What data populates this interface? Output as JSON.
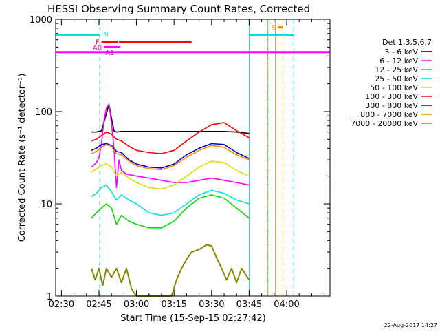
{
  "chart_data": {
    "type": "line",
    "title": "HESSI Observing Summary Count Rates, Corrected",
    "xlabel": "Start Time (15-Sep-15 02:27:42)",
    "ylabel": "Corrected Count Rate (s⁻¹ detector⁻¹)",
    "y_scale": "log",
    "ylim": [
      1,
      1000
    ],
    "xlim_minutes": [
      -2.3,
      107.3
    ],
    "x_ticks": [
      {
        "label": "02:30",
        "minute": 0
      },
      {
        "label": "02:45",
        "minute": 15
      },
      {
        "label": "03:00",
        "minute": 30
      },
      {
        "label": "03:15",
        "minute": 45
      },
      {
        "label": "03:30",
        "minute": 60
      },
      {
        "label": "03:45",
        "minute": 75
      },
      {
        "label": "04:00",
        "minute": 90
      }
    ],
    "y_ticks": [
      {
        "label": "1",
        "value": 1
      },
      {
        "label": "10",
        "value": 10
      },
      {
        "label": "100",
        "value": 100
      },
      {
        "label": "1000",
        "value": 1000
      }
    ],
    "legend_title": "Det 1,3,5,6,7",
    "legend_position": "right",
    "timestamp": "22-Aug-2017 14:27",
    "series": [
      {
        "name": "3 - 6 keV",
        "color": "#000000",
        "x": [
          12,
          14,
          16,
          18,
          19,
          20,
          21,
          22,
          24,
          27,
          30,
          35,
          40,
          45,
          50,
          55,
          60,
          65,
          70,
          75
        ],
        "y": [
          60,
          60,
          62,
          95,
          120,
          85,
          62,
          60,
          61,
          61,
          61,
          61,
          61,
          61,
          61,
          61,
          61,
          61,
          60,
          58
        ]
      },
      {
        "name": "6 - 12 keV",
        "color": "#ff00ff",
        "x": [
          12,
          14,
          15,
          16,
          17,
          18,
          19,
          20,
          21,
          22,
          23,
          24,
          26,
          30,
          35,
          40,
          45,
          50,
          55,
          60,
          65,
          70,
          75
        ],
        "y": [
          25,
          28,
          32,
          45,
          80,
          110,
          120,
          75,
          40,
          15,
          30,
          23,
          21,
          20,
          19,
          18,
          17,
          17,
          18,
          19,
          18,
          17,
          16
        ]
      },
      {
        "name": "12 - 25 keV",
        "color": "#00dd00",
        "x": [
          12,
          14,
          16,
          18,
          20,
          22,
          24,
          27,
          30,
          35,
          40,
          45,
          50,
          55,
          60,
          65,
          70,
          75
        ],
        "y": [
          7,
          8,
          9,
          10,
          9,
          6,
          7.5,
          6.5,
          6,
          5.5,
          5.5,
          6.5,
          9,
          11.5,
          12.5,
          11.5,
          9,
          7
        ]
      },
      {
        "name": "25 - 50 keV",
        "color": "#00e0e0",
        "x": [
          12,
          14,
          16,
          18,
          20,
          22,
          24,
          27,
          30,
          35,
          40,
          45,
          50,
          55,
          60,
          65,
          70,
          75
        ],
        "y": [
          12,
          13,
          15,
          16,
          13.5,
          11,
          12.5,
          11,
          10,
          8,
          7.5,
          8,
          10,
          12.5,
          14,
          13,
          11,
          10
        ]
      },
      {
        "name": "50 - 100 keV",
        "color": "#dddd00",
        "x": [
          12,
          14,
          16,
          18,
          20,
          22,
          24,
          27,
          30,
          35,
          40,
          45,
          50,
          55,
          60,
          65,
          70,
          75
        ],
        "y": [
          22,
          24,
          26,
          27,
          25,
          20,
          22,
          19,
          17,
          15,
          14.5,
          16,
          20,
          25,
          29,
          28,
          23,
          20
        ]
      },
      {
        "name": "100 - 300 keV",
        "color": "#ff0000",
        "x": [
          12,
          14,
          16,
          18,
          20,
          22,
          24,
          27,
          30,
          35,
          40,
          45,
          50,
          55,
          60,
          65,
          70,
          75
        ],
        "y": [
          48,
          50,
          55,
          60,
          57,
          50,
          48,
          42,
          38,
          36,
          35,
          38,
          48,
          60,
          72,
          76,
          62,
          52
        ]
      },
      {
        "name": "300 - 800 keV",
        "color": "#0000cc",
        "x": [
          12,
          14,
          16,
          18,
          20,
          22,
          24,
          27,
          30,
          35,
          40,
          45,
          50,
          55,
          60,
          65,
          70,
          75
        ],
        "y": [
          38,
          40,
          44,
          45,
          43,
          37,
          36,
          30,
          27,
          25,
          24.5,
          27,
          34,
          40,
          45,
          44,
          36,
          31
        ]
      },
      {
        "name": "800 - 7000 keV",
        "color": "#ff8800",
        "x": [
          12,
          14,
          16,
          18,
          20,
          22,
          24,
          27,
          30,
          35,
          40,
          45,
          50,
          55,
          60,
          65,
          70,
          75
        ],
        "y": [
          35,
          37,
          41,
          44,
          42,
          35,
          34,
          29,
          26,
          24,
          23.5,
          26,
          32,
          38,
          43,
          41,
          34,
          30
        ]
      },
      {
        "name": "7000 - 20000 keV",
        "color": "#888800",
        "x": [
          12,
          13.5,
          15,
          16.5,
          18,
          20,
          22,
          24,
          26,
          28,
          30,
          35,
          40,
          44,
          46,
          48,
          50,
          52,
          55,
          58,
          60,
          62,
          64,
          66,
          68,
          70,
          72,
          75
        ],
        "y": [
          2,
          1.5,
          2,
          1.3,
          2,
          1.6,
          2,
          1.4,
          2,
          1.2,
          1,
          1,
          1,
          1,
          1.5,
          2,
          2.5,
          3,
          3.2,
          3.6,
          3.5,
          2.6,
          2,
          1.5,
          2,
          1.4,
          2,
          1.5
        ]
      }
    ],
    "state_bars": [
      {
        "label": "N",
        "color": "#00e0e0",
        "segments": [
          [
            -2.3,
            15.3
          ],
          [
            75,
            92.8
          ]
        ],
        "level_value": 670
      },
      {
        "label": "F",
        "color": "#ff0000",
        "segments": [
          [
            16,
            22.5
          ],
          [
            23,
            52
          ]
        ],
        "level_value": 570
      },
      {
        "label": "A0",
        "color": "#ff00ff",
        "segments": [
          [
            17,
            23.5
          ]
        ],
        "level_value": 500
      },
      {
        "label": "A1",
        "color": "#ff00ff",
        "segments": [
          [
            -2.3,
            107.3
          ]
        ],
        "level_value": 440
      },
      {
        "label": "S",
        "color": "#ff8800",
        "segments": [
          [
            86.5,
            88.5
          ]
        ],
        "level_value": 820
      }
    ],
    "vertical_markers": [
      {
        "minute": 15.3,
        "color": "#00e0e0",
        "style": "dashed"
      },
      {
        "minute": 75,
        "color": "#00e0e0",
        "style": "solid"
      },
      {
        "minute": 83,
        "color": "#00e0e0",
        "style": "dashed"
      },
      {
        "minute": 92.8,
        "color": "#00e0e0",
        "style": "dashed"
      },
      {
        "minute": 82.5,
        "color": "#ff8800",
        "style": "solid"
      },
      {
        "minute": 85.5,
        "color": "#ff8800",
        "style": "solid"
      },
      {
        "minute": 88.5,
        "color": "#ff8800",
        "style": "dashed"
      }
    ]
  }
}
